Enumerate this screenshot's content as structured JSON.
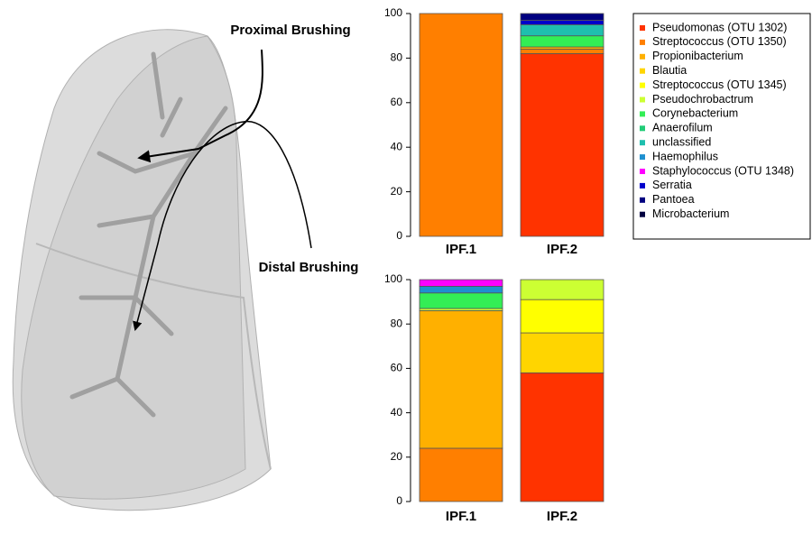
{
  "annotations": [
    "Proximal Brushing",
    "Distal Brushing"
  ],
  "legend": {
    "series": [
      {
        "name": "Pseudomonas (OTU 1302)",
        "color": "#ff3300"
      },
      {
        "name": "Streptococcus (OTU 1350)",
        "color": "#ff7f00"
      },
      {
        "name": "Propionibacterium",
        "color": "#ffb000"
      },
      {
        "name": "Blautia",
        "color": "#ffd500"
      },
      {
        "name": "Streptococcus (OTU 1345)",
        "color": "#ffff00"
      },
      {
        "name": "Pseudochrobactrum",
        "color": "#ccff33"
      },
      {
        "name": "Corynebacterium",
        "color": "#33ee55"
      },
      {
        "name": "Anaerofilum",
        "color": "#22cc77"
      },
      {
        "name": "unclassified",
        "color": "#1fbfae"
      },
      {
        "name": "Haemophilus",
        "color": "#1e90d0"
      },
      {
        "name": "Staphylococcus (OTU 1348)",
        "color": "#ff00ff"
      },
      {
        "name": "Serratia",
        "color": "#0000cc"
      },
      {
        "name": "Pantoea",
        "color": "#000080"
      },
      {
        "name": "Microbacterium",
        "color": "#000040"
      }
    ]
  },
  "chart_data": [
    {
      "type": "bar",
      "stacked": true,
      "categories": [
        "IPF.1",
        "IPF.2"
      ],
      "ylim": [
        0,
        100
      ],
      "yticks": [
        0,
        20,
        40,
        60,
        80,
        100
      ],
      "series": [
        {
          "values": [
            0,
            82
          ]
        },
        {
          "values": [
            100,
            2
          ]
        },
        {
          "values": [
            0,
            1
          ]
        },
        {
          "values": [
            0,
            0
          ]
        },
        {
          "values": [
            0,
            0
          ]
        },
        {
          "values": [
            0,
            0
          ]
        },
        {
          "values": [
            0,
            5
          ]
        },
        {
          "values": [
            0,
            0
          ]
        },
        {
          "values": [
            0,
            5
          ]
        },
        {
          "values": [
            0,
            0
          ]
        },
        {
          "values": [
            0,
            0
          ]
        },
        {
          "values": [
            0,
            2
          ]
        },
        {
          "values": [
            0,
            3
          ]
        },
        {
          "values": [
            0,
            0
          ]
        }
      ]
    },
    {
      "type": "bar",
      "stacked": true,
      "categories": [
        "IPF.1",
        "IPF.2"
      ],
      "ylim": [
        0,
        100
      ],
      "yticks": [
        0,
        20,
        40,
        60,
        80,
        100
      ],
      "series": [
        {
          "values": [
            0,
            58
          ]
        },
        {
          "values": [
            24,
            0
          ]
        },
        {
          "values": [
            62,
            0
          ]
        },
        {
          "values": [
            0,
            18
          ]
        },
        {
          "values": [
            0,
            15
          ]
        },
        {
          "values": [
            1,
            9
          ]
        },
        {
          "values": [
            7,
            0
          ]
        },
        {
          "values": [
            0,
            0
          ]
        },
        {
          "values": [
            0,
            0
          ]
        },
        {
          "values": [
            3,
            0
          ]
        },
        {
          "values": [
            3,
            0
          ]
        },
        {
          "values": [
            0,
            0
          ]
        },
        {
          "values": [
            0,
            0
          ]
        },
        {
          "values": [
            0,
            0
          ]
        }
      ]
    }
  ]
}
